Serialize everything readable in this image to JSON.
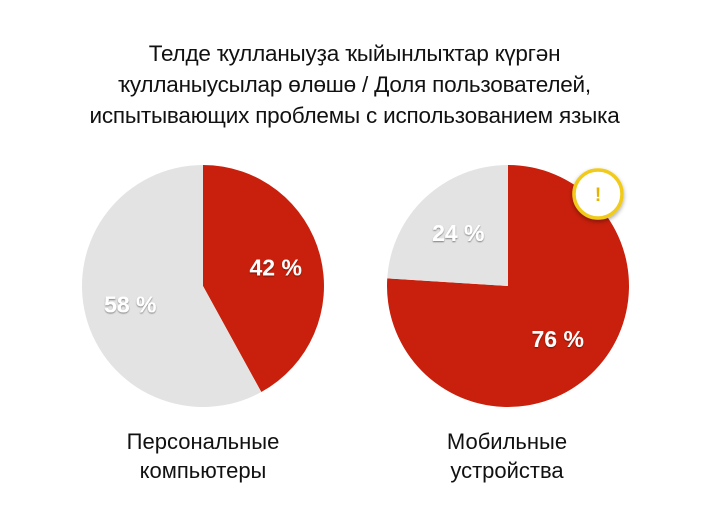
{
  "title_lines": [
    "Телде ҡулланыуҙа ҡыйынлыҡтар күргән",
    "ҡулланыусылар өлөшө / Доля пользователей,",
    "испытывающих проблемы с использованием языка"
  ],
  "colors": {
    "highlight": "#c8200c",
    "rest": "#e3e3e3",
    "badge_fill": "#ffffff",
    "badge_ring": "#f1cb1f",
    "badge_text": "#e5b400"
  },
  "badge": {
    "icon": "exclamation-icon",
    "text": "!"
  },
  "chart_data": [
    {
      "type": "pie",
      "caption_lines": [
        "Персональные",
        "компьютеры"
      ],
      "slices": [
        {
          "value": 42,
          "label": "42 %",
          "color": "#c8200c"
        },
        {
          "value": 58,
          "label": "58 %",
          "color": "#e3e3e3"
        }
      ],
      "start": "12 o'clock",
      "direction": "clockwise",
      "has_badge": false
    },
    {
      "type": "pie",
      "caption_lines": [
        "Мобильные",
        "устройства"
      ],
      "slices": [
        {
          "value": 76,
          "label": "76 %",
          "color": "#c8200c"
        },
        {
          "value": 24,
          "label": "24 %",
          "color": "#e3e3e3"
        }
      ],
      "start": "12 o'clock",
      "direction": "clockwise",
      "has_badge": true
    }
  ]
}
